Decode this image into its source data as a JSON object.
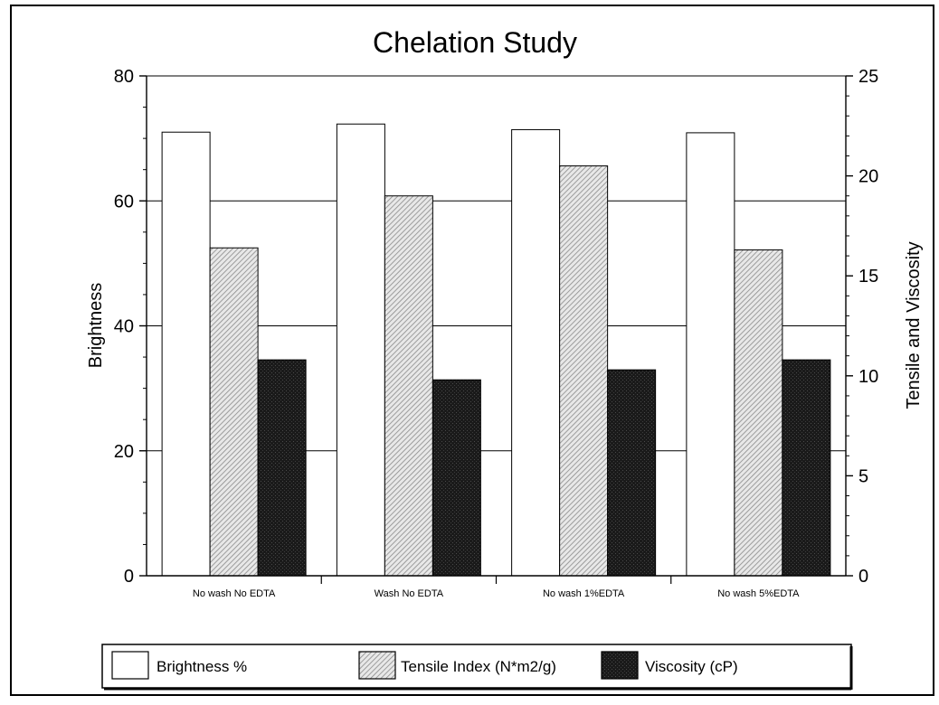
{
  "chart_data": {
    "type": "bar",
    "title": "Chelation Study",
    "categories": [
      "No wash No EDTA",
      "Wash No EDTA",
      "No wash 1%EDTA",
      "No wash 5%EDTA"
    ],
    "series": [
      {
        "name": "Brightness %",
        "axis": "left",
        "pattern": "white",
        "values": [
          71,
          72.3,
          71.4,
          70.9
        ]
      },
      {
        "name": "Tensile Index (N*m2/g)",
        "axis": "right",
        "pattern": "diagonal-hatch",
        "values": [
          16.4,
          19,
          20.5,
          16.3
        ]
      },
      {
        "name": "Viscosity (cP)",
        "axis": "right",
        "pattern": "dark-crosshatch",
        "values": [
          10.8,
          9.8,
          10.3,
          10.8
        ]
      }
    ],
    "y_left": {
      "label": "Brightness",
      "range": [
        0,
        80
      ],
      "ticks": [
        0,
        20,
        40,
        60,
        80
      ]
    },
    "y_right": {
      "label": "Tensile and Viscosity",
      "range": [
        0,
        25
      ],
      "ticks": [
        0,
        5,
        10,
        15,
        20,
        25
      ]
    },
    "grid": true,
    "legend_position": "bottom"
  }
}
